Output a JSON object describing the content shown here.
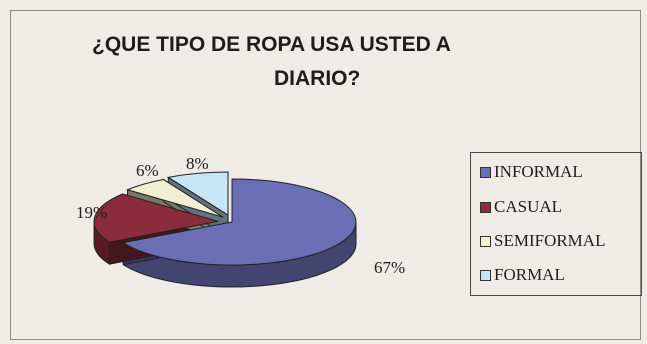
{
  "chart_data": {
    "type": "pie",
    "title": "¿QUE TIPO DE ROPA USA USTED A DIARIO?",
    "title_lines": [
      "¿QUE TIPO DE ROPA USA USTED A",
      "DIARIO?"
    ],
    "categories": [
      "INFORMAL",
      "CASUAL",
      "SEMIFORMAL",
      "FORMAL"
    ],
    "values": [
      67,
      19,
      6,
      8
    ],
    "value_labels": [
      "67%",
      "19%",
      "6%",
      "8%"
    ],
    "colors": [
      "#6a6fb5",
      "#8a2c3c",
      "#f1efd2",
      "#c6e6f5"
    ],
    "legend_position": "right",
    "exploded": true,
    "three_d": true
  }
}
